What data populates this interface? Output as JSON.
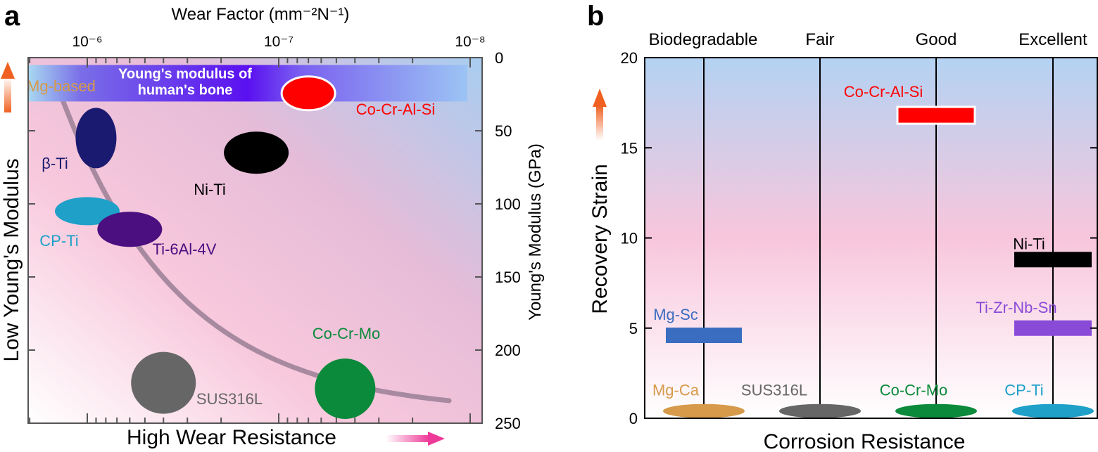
{
  "panel_a": {
    "letter": "a",
    "top_axis_label": "Wear Factor (mm⁻²N⁻¹)",
    "top_tick_labels": [
      "10⁻⁶",
      "10⁻⁷",
      "10⁻⁸"
    ],
    "right_axis_label": "Young's Modulus (GPa)",
    "left_label": "Low Young's Modulus",
    "bottom_label": "High Wear Resistance",
    "bone_band_label": [
      "Young's modulus of",
      "human's bone"
    ],
    "colors": {
      "arrow_left": "#f06020",
      "arrow_bottom": "#ee3a98",
      "trend": "#9a7f95"
    }
  },
  "panel_b": {
    "letter": "b",
    "category_labels": [
      "Biodegradable",
      "Fair",
      "Good",
      "Excellent"
    ],
    "y_axis_label": "Recovery Strain",
    "x_axis_label": "Corrosion Resistance",
    "colors": {
      "arrow": "#f06020"
    }
  },
  "chart_data": [
    {
      "type": "scatter",
      "title": "",
      "xlabel": "Wear Factor (mm⁻²N⁻¹)",
      "x_scale": "log",
      "x_reversed": true,
      "xlim": [
        4e-06,
        1e-08
      ],
      "ylabel": "Young's Modulus (GPa)",
      "y_reversed": true,
      "ylim": [
        0,
        250
      ],
      "y_ticks": [
        0,
        50,
        100,
        150,
        200,
        250
      ],
      "reference_band": {
        "name": "Young's modulus of human's bone",
        "ylim": [
          5,
          30
        ]
      },
      "series": [
        {
          "name": "Mg-based",
          "wear_factor": 4e-06,
          "modulus": 40,
          "color": "#d69a4a"
        },
        {
          "name": "β-Ti",
          "wear_factor": 9e-07,
          "modulus": 55,
          "color": "#1a1a70"
        },
        {
          "name": "CP-Ti",
          "wear_factor": 1e-06,
          "modulus": 105,
          "color": "#1ea0c8"
        },
        {
          "name": "Ti-6Al-4V",
          "wear_factor": 6e-07,
          "modulus": 115,
          "color": "#4b0f80"
        },
        {
          "name": "Ni-Ti",
          "wear_factor": 1.5e-07,
          "modulus": 65,
          "color": "#000000"
        },
        {
          "name": "Co-Cr-Al-Si",
          "wear_factor": 7e-08,
          "modulus": 22,
          "color": "#ff0000"
        },
        {
          "name": "SUS316L",
          "wear_factor": 4e-07,
          "modulus": 220,
          "color": "#666666"
        },
        {
          "name": "Co-Cr-Mo",
          "wear_factor": 4.5e-08,
          "modulus": 225,
          "color": "#0a8a3a"
        }
      ]
    },
    {
      "type": "bar",
      "title": "",
      "xlabel": "Corrosion Resistance",
      "ylabel": "Recovery Strain",
      "ylim": [
        0,
        20
      ],
      "y_ticks": [
        0,
        5,
        10,
        15,
        20
      ],
      "categories": [
        "Biodegradable",
        "Fair",
        "Good",
        "Excellent"
      ],
      "series": [
        {
          "name": "Mg-Sc",
          "category": "Biodegradable",
          "value": 4.6,
          "color": "#3a6cc0"
        },
        {
          "name": "Mg-Ca",
          "category": "Biodegradable",
          "value": 0.4,
          "color": "#d69a4a"
        },
        {
          "name": "SUS316L",
          "category": "Fair",
          "value": 0.4,
          "color": "#666666"
        },
        {
          "name": "Co-Cr-Al-Si",
          "category": "Good",
          "value": 16.8,
          "color": "#ff0000"
        },
        {
          "name": "Co-Cr-Mo",
          "category": "Good",
          "value": 0.4,
          "color": "#0a8a3a"
        },
        {
          "name": "Ni-Ti",
          "category": "Excellent",
          "value": 8.8,
          "color": "#000000"
        },
        {
          "name": "Ti-Zr-Nb-Sn",
          "category": "Excellent",
          "value": 5.0,
          "color": "#8a4ad8"
        },
        {
          "name": "CP-Ti",
          "category": "Excellent",
          "value": 0.4,
          "color": "#1ea0c8"
        }
      ]
    }
  ]
}
